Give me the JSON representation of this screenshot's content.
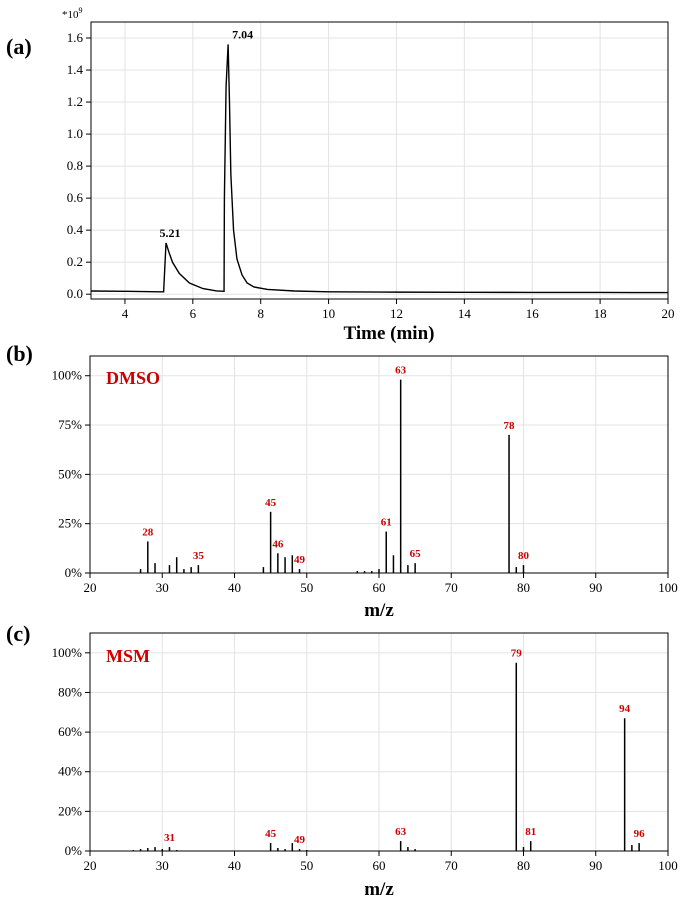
{
  "figure": {
    "label_color": "#cc0000"
  },
  "chart_data": [
    {
      "panel": "(a)",
      "type": "line",
      "title": "",
      "xlabel": "Time (min)",
      "ylabel": "",
      "y_multiplier": "*10",
      "y_multiplier_exp": "9",
      "xlim": [
        3,
        20
      ],
      "ylim": [
        -0.03,
        1.7
      ],
      "xticks": [
        "4",
        "6",
        "8",
        "10",
        "12",
        "14",
        "16",
        "18",
        "20"
      ],
      "yticks": [
        "0.0",
        "0.2",
        "0.4",
        "0.6",
        "0.8",
        "1.0",
        "1.2",
        "1.4",
        "1.6"
      ],
      "grid": true,
      "series": [
        {
          "x": [
            3.0,
            4.0,
            5.0,
            5.14,
            5.21,
            5.3,
            5.4,
            5.6,
            5.9,
            6.3,
            6.7,
            6.92,
            6.93,
            6.98,
            7.04,
            7.08,
            7.12,
            7.2,
            7.3,
            7.45,
            7.6,
            7.8,
            8.2,
            9.0,
            10.0,
            12.0,
            14.0,
            16.0,
            18.0,
            20.0
          ],
          "y": [
            0.02,
            0.018,
            0.015,
            0.015,
            0.32,
            0.26,
            0.2,
            0.13,
            0.07,
            0.035,
            0.02,
            0.018,
            0.6,
            1.3,
            1.56,
            1.2,
            0.75,
            0.4,
            0.22,
            0.12,
            0.07,
            0.045,
            0.03,
            0.02,
            0.015,
            0.013,
            0.012,
            0.011,
            0.011,
            0.01
          ]
        }
      ],
      "annotations": [
        {
          "x": 5.21,
          "y": 0.32,
          "text": "5.21"
        },
        {
          "x": 7.04,
          "y": 1.56,
          "text": "7.04"
        }
      ]
    },
    {
      "panel": "(b)",
      "type": "bar",
      "title": "",
      "legend_text": "DMSO",
      "xlabel": "m/z",
      "ylabel": "",
      "xlim": [
        20,
        100
      ],
      "ylim": [
        0,
        110
      ],
      "xticks": [
        "20",
        "30",
        "40",
        "50",
        "60",
        "70",
        "80",
        "90",
        "100"
      ],
      "yticks": [
        "0%",
        "25%",
        "50%",
        "75%",
        "100%"
      ],
      "grid": true,
      "x": [
        27,
        28,
        29,
        31,
        32,
        33,
        34,
        35,
        44,
        45,
        46,
        47,
        48,
        49,
        57,
        58,
        59,
        60,
        61,
        62,
        63,
        64,
        65,
        78,
        79,
        80
      ],
      "values": [
        2,
        16,
        5,
        4,
        8,
        2,
        3,
        4,
        3,
        31,
        10,
        8,
        9,
        2,
        1,
        1,
        1,
        2,
        21,
        9,
        98,
        4,
        5,
        70,
        3,
        4
      ],
      "annotations": [
        {
          "x": 28,
          "y": 16,
          "text": "28"
        },
        {
          "x": 35,
          "y": 4,
          "text": "35"
        },
        {
          "x": 45,
          "y": 31,
          "text": "45"
        },
        {
          "x": 46,
          "y": 10,
          "text": "46"
        },
        {
          "x": 49,
          "y": 2,
          "text": "49"
        },
        {
          "x": 61,
          "y": 21,
          "text": "61"
        },
        {
          "x": 63,
          "y": 98,
          "text": "63"
        },
        {
          "x": 65,
          "y": 5,
          "text": "65"
        },
        {
          "x": 78,
          "y": 70,
          "text": "78"
        },
        {
          "x": 80,
          "y": 4,
          "text": "80"
        }
      ]
    },
    {
      "panel": "(c)",
      "type": "bar",
      "title": "",
      "legend_text": "MSM",
      "xlabel": "m/z",
      "ylabel": "",
      "xlim": [
        20,
        100
      ],
      "ylim": [
        0,
        110
      ],
      "xticks": [
        "20",
        "30",
        "40",
        "50",
        "60",
        "70",
        "80",
        "90",
        "100"
      ],
      "yticks": [
        "0%",
        "20%",
        "40%",
        "60%",
        "80%",
        "100%"
      ],
      "grid": true,
      "x": [
        26,
        27,
        28,
        29,
        30,
        31,
        32,
        45,
        46,
        47,
        48,
        49,
        50,
        63,
        64,
        65,
        79,
        80,
        81,
        94,
        95,
        96
      ],
      "values": [
        0.5,
        1,
        1.5,
        2,
        1,
        2,
        0.5,
        4,
        1.5,
        1,
        4,
        1,
        0.5,
        5,
        2,
        1,
        95,
        2,
        5,
        67,
        3,
        4
      ],
      "annotations": [
        {
          "x": 31,
          "y": 2,
          "text": "31"
        },
        {
          "x": 45,
          "y": 4,
          "text": "45"
        },
        {
          "x": 49,
          "y": 1,
          "text": "49"
        },
        {
          "x": 63,
          "y": 5,
          "text": "63"
        },
        {
          "x": 79,
          "y": 95,
          "text": "79"
        },
        {
          "x": 81,
          "y": 5,
          "text": "81"
        },
        {
          "x": 94,
          "y": 67,
          "text": "94"
        },
        {
          "x": 96,
          "y": 4,
          "text": "96"
        }
      ]
    }
  ]
}
